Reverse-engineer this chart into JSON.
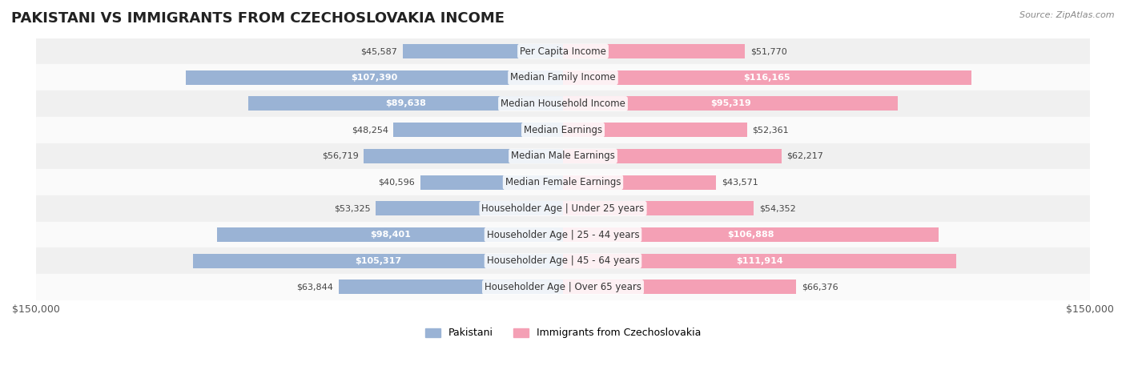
{
  "title": "PAKISTANI VS IMMIGRANTS FROM CZECHOSLOVAKIA INCOME",
  "source": "Source: ZipAtlas.com",
  "categories": [
    "Per Capita Income",
    "Median Family Income",
    "Median Household Income",
    "Median Earnings",
    "Median Male Earnings",
    "Median Female Earnings",
    "Householder Age | Under 25 years",
    "Householder Age | 25 - 44 years",
    "Householder Age | 45 - 64 years",
    "Householder Age | Over 65 years"
  ],
  "pakistani_values": [
    45587,
    107390,
    89638,
    48254,
    56719,
    40596,
    53325,
    98401,
    105317,
    63844
  ],
  "czech_values": [
    51770,
    116165,
    95319,
    52361,
    62217,
    43571,
    54352,
    106888,
    111914,
    66376
  ],
  "pakistani_color": "#9ab3d5",
  "czech_color": "#f4a0b5",
  "pakistani_label_color": "#5a7fa8",
  "czech_label_color": "#e06080",
  "bar_height": 0.55,
  "max_value": 150000,
  "background_color": "#f5f5f5",
  "row_bg_light": "#f0f0f0",
  "row_bg_white": "#fafafa",
  "legend_pakistani_color": "#9ab3d5",
  "legend_czech_color": "#f4a0b5",
  "title_fontsize": 13,
  "label_fontsize": 8.5,
  "value_fontsize": 8,
  "axis_label": "$150,000"
}
